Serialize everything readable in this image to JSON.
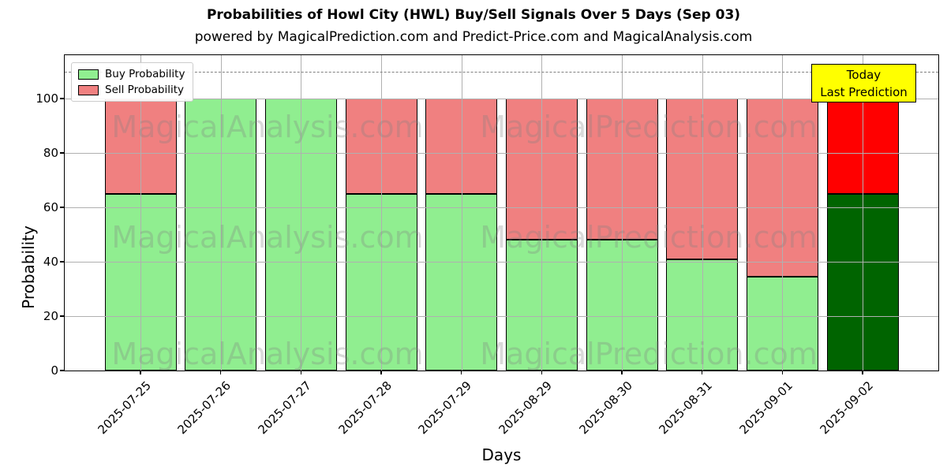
{
  "title": "Probabilities of Howl City (HWL) Buy/Sell Signals Over 5 Days (Sep 03)",
  "subtitle": "powered by MagicalPrediction.com and Predict-Price.com and MagicalAnalysis.com",
  "legend": {
    "items": [
      {
        "label": "Buy Probability",
        "color": "#90EE90"
      },
      {
        "label": "Sell Probability",
        "color": "#F08080"
      }
    ]
  },
  "annotation": {
    "line1": "Today",
    "line2": "Last Prediction",
    "bg_color": "#FFFF00"
  },
  "watermarks": {
    "left_text": "MagicalAnalysis.com",
    "right_text": "MagicalPrediction.com"
  },
  "chart_data": {
    "type": "bar",
    "stacked": true,
    "title": "Probabilities of Howl City (HWL) Buy/Sell Signals Over 5 Days (Sep 03)",
    "xlabel": "Days",
    "ylabel": "Probability",
    "categories": [
      "2025-07-25",
      "2025-07-26",
      "2025-07-27",
      "2025-07-28",
      "2025-07-29",
      "2025-08-29",
      "2025-08-30",
      "2025-08-31",
      "2025-09-01",
      "2025-09-02"
    ],
    "series": [
      {
        "name": "Buy Probability",
        "color": "#90EE90",
        "today_color": "#006400",
        "values": [
          65,
          100,
          100,
          65,
          65,
          48,
          48,
          41,
          34.5,
          65
        ]
      },
      {
        "name": "Sell Probability",
        "color": "#F08080",
        "today_color": "#FF0000",
        "values": [
          35,
          0,
          0,
          35,
          35,
          52,
          52,
          59,
          65.5,
          35
        ]
      }
    ],
    "today_index": 9,
    "yticks": [
      0,
      20,
      40,
      60,
      80,
      100
    ],
    "ylim": [
      0,
      116
    ],
    "dashed_line_y": 110,
    "grid": true,
    "legend_position": "upper left",
    "colors": {
      "grid": "#b0b0b0",
      "dashed_line": "#7f7f7f",
      "bar_edge": "#000000"
    }
  }
}
